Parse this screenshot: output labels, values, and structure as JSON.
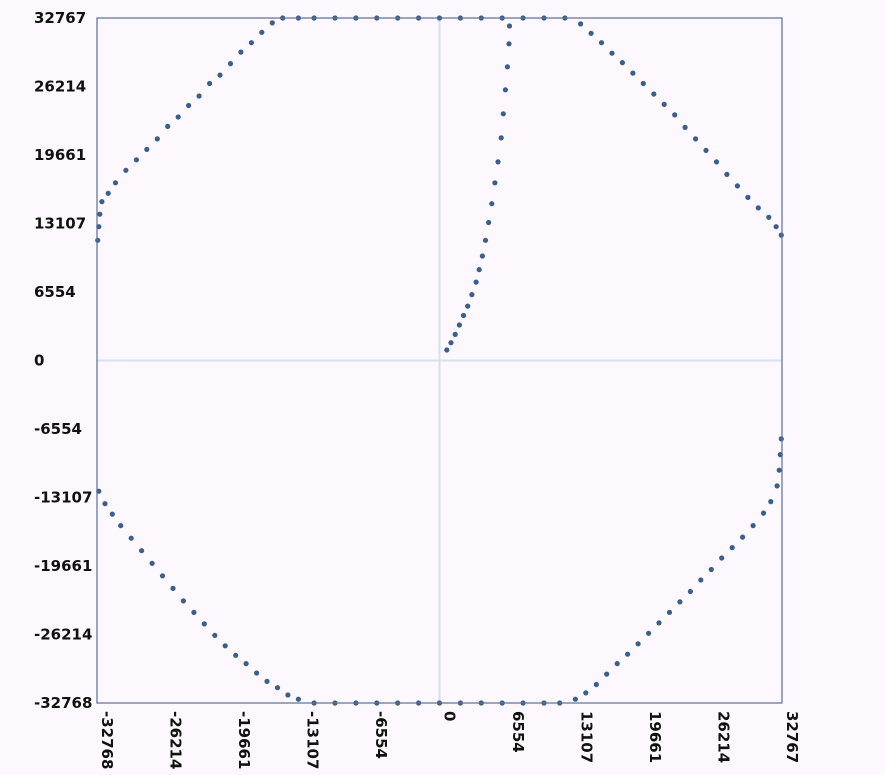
{
  "chart_data": {
    "type": "scatter",
    "title": "",
    "xlabel": "",
    "ylabel": "",
    "xlim": [
      -32768,
      32767
    ],
    "ylim": [
      -32768,
      32767
    ],
    "xticks": [
      -32768,
      -26214,
      -19661,
      -13107,
      -6554,
      0,
      6554,
      13107,
      19661,
      26214,
      32767
    ],
    "yticks": [
      -32768,
      -26214,
      -19661,
      -13107,
      -6554,
      0,
      6554,
      13107,
      19661,
      26214,
      32767
    ],
    "xtick_labels": [
      "-32768",
      "-26214",
      "-19661",
      "-13107",
      "-6554",
      "0",
      "6554",
      "13107",
      "19661",
      "26214",
      "32767"
    ],
    "ytick_labels": [
      "-32768",
      "-26214",
      "-19661",
      "-13107",
      "-6554",
      "0",
      "6554",
      "13107",
      "19661",
      "26214",
      "32767"
    ],
    "grid": false,
    "zero_lines": true,
    "point_color": "#3a5f8a",
    "axis_color": "#5a6f96",
    "zero_line_color": "#d4e1ee",
    "series": [
      {
        "values": [
          [
            -32700,
            11500
          ],
          [
            -32600,
            12800
          ],
          [
            -32500,
            14000
          ],
          [
            -32300,
            15200
          ],
          [
            -31700,
            16000
          ],
          [
            -31000,
            17000
          ],
          [
            -30000,
            18200
          ],
          [
            -29000,
            19200
          ],
          [
            -28000,
            20200
          ],
          [
            -27000,
            21200
          ],
          [
            -26000,
            22400
          ],
          [
            -25000,
            23300
          ],
          [
            -24000,
            24400
          ],
          [
            -23000,
            25300
          ],
          [
            -22000,
            26500
          ],
          [
            -21000,
            27300
          ],
          [
            -20000,
            28400
          ],
          [
            -19000,
            29500
          ],
          [
            -18000,
            30400
          ],
          [
            -17000,
            31400
          ],
          [
            -16000,
            32300
          ],
          [
            -15000,
            32767
          ],
          [
            -13500,
            32767
          ],
          [
            -12000,
            32767
          ],
          [
            -10000,
            32767
          ],
          [
            -8000,
            32767
          ],
          [
            -6000,
            32767
          ],
          [
            -4000,
            32767
          ],
          [
            -2000,
            32767
          ],
          [
            0,
            32767
          ],
          [
            2000,
            32767
          ],
          [
            4000,
            32767
          ],
          [
            6000,
            32767
          ],
          [
            8000,
            32767
          ],
          [
            10000,
            32767
          ],
          [
            12000,
            32767
          ],
          [
            13500,
            32200
          ],
          [
            14500,
            31300
          ],
          [
            15500,
            30400
          ],
          [
            16500,
            29400
          ],
          [
            17500,
            28500
          ],
          [
            18500,
            27500
          ],
          [
            19500,
            26500
          ],
          [
            20500,
            25500
          ],
          [
            21500,
            24500
          ],
          [
            22500,
            23500
          ],
          [
            23500,
            22300
          ],
          [
            24500,
            21200
          ],
          [
            25500,
            20100
          ],
          [
            26500,
            19000
          ],
          [
            27500,
            17800
          ],
          [
            28500,
            16700
          ],
          [
            29500,
            15600
          ],
          [
            30500,
            14600
          ],
          [
            31500,
            13700
          ],
          [
            32200,
            12800
          ],
          [
            32700,
            12000
          ],
          [
            700,
            1000
          ],
          [
            1100,
            1700
          ],
          [
            1500,
            2500
          ],
          [
            1900,
            3400
          ],
          [
            2300,
            4300
          ],
          [
            2700,
            5200
          ],
          [
            3100,
            6300
          ],
          [
            3500,
            7500
          ],
          [
            3800,
            8700
          ],
          [
            4100,
            10000
          ],
          [
            4400,
            11500
          ],
          [
            4700,
            13200
          ],
          [
            5000,
            15000
          ],
          [
            5300,
            17000
          ],
          [
            5600,
            19000
          ],
          [
            5900,
            21300
          ],
          [
            6100,
            23600
          ],
          [
            6300,
            25900
          ],
          [
            6500,
            28100
          ],
          [
            6650,
            30300
          ],
          [
            6700,
            32000
          ],
          [
            32700,
            -7500
          ],
          [
            32600,
            -9000
          ],
          [
            32500,
            -10500
          ],
          [
            32300,
            -12000
          ],
          [
            31700,
            -13500
          ],
          [
            31000,
            -14600
          ],
          [
            30000,
            -15800
          ],
          [
            29000,
            -16900
          ],
          [
            28000,
            -17900
          ],
          [
            27000,
            -18900
          ],
          [
            26000,
            -20000
          ],
          [
            25000,
            -21000
          ],
          [
            24000,
            -22100
          ],
          [
            23000,
            -23100
          ],
          [
            22000,
            -24100
          ],
          [
            21000,
            -25100
          ],
          [
            20000,
            -26100
          ],
          [
            19000,
            -27100
          ],
          [
            18000,
            -28100
          ],
          [
            17000,
            -29000
          ],
          [
            16000,
            -30000
          ],
          [
            15000,
            -31000
          ],
          [
            14000,
            -31800
          ],
          [
            13000,
            -32400
          ],
          [
            11500,
            -32767
          ],
          [
            10000,
            -32767
          ],
          [
            8000,
            -32767
          ],
          [
            6000,
            -32767
          ],
          [
            4000,
            -32767
          ],
          [
            2000,
            -32767
          ],
          [
            0,
            -32767
          ],
          [
            -2000,
            -32767
          ],
          [
            -4000,
            -32767
          ],
          [
            -6000,
            -32767
          ],
          [
            -8000,
            -32767
          ],
          [
            -10000,
            -32767
          ],
          [
            -12000,
            -32767
          ],
          [
            -13500,
            -32400
          ],
          [
            -14500,
            -32000
          ],
          [
            -15500,
            -31300
          ],
          [
            -16500,
            -30700
          ],
          [
            -17500,
            -29900
          ],
          [
            -18500,
            -29000
          ],
          [
            -19500,
            -28200
          ],
          [
            -20500,
            -27300
          ],
          [
            -21500,
            -26300
          ],
          [
            -22500,
            -25200
          ],
          [
            -23500,
            -24100
          ],
          [
            -24500,
            -23000
          ],
          [
            -25500,
            -21800
          ],
          [
            -26500,
            -20600
          ],
          [
            -27500,
            -19400
          ],
          [
            -28500,
            -18200
          ],
          [
            -29500,
            -17000
          ],
          [
            -30500,
            -15800
          ],
          [
            -31300,
            -14700
          ],
          [
            -32000,
            -13700
          ],
          [
            -32600,
            -12500
          ]
        ]
      }
    ]
  }
}
